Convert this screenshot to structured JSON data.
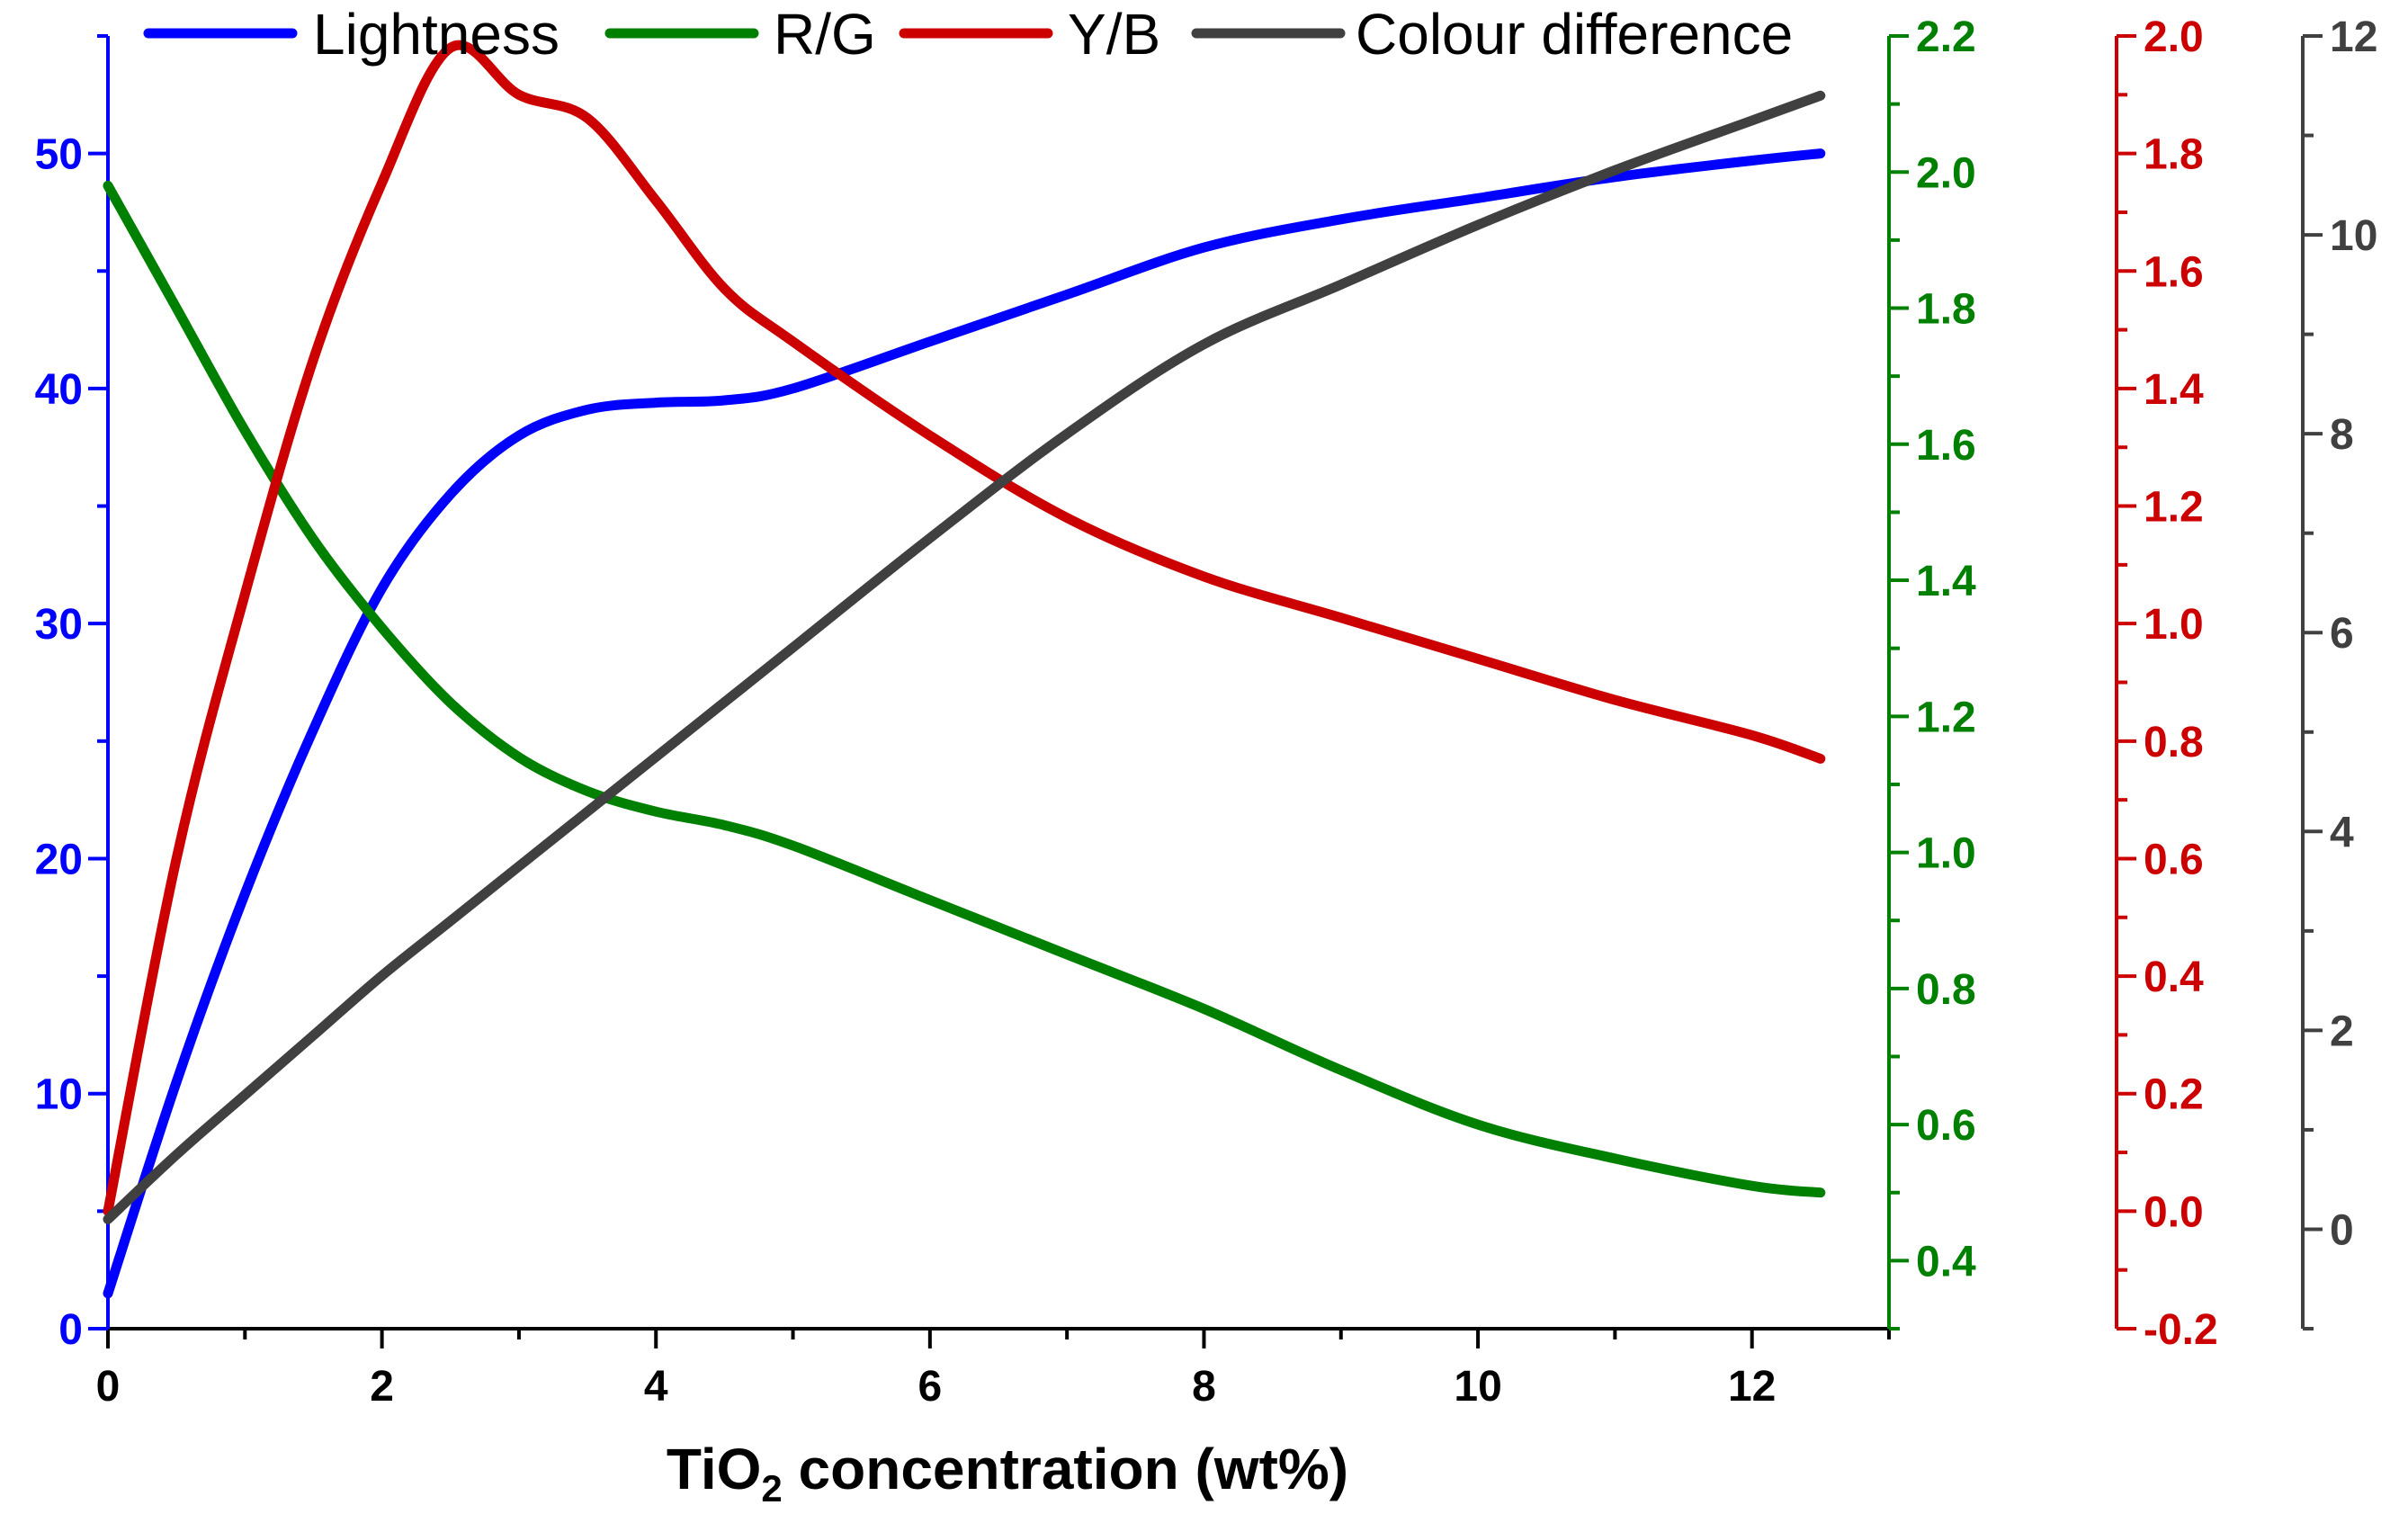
{
  "colors": {
    "lightness": "#0000ff",
    "rg": "#008000",
    "yb": "#cc0000",
    "colour_difference": "#404040",
    "axis_black": "#000000"
  },
  "chart_data": {
    "type": "line",
    "title": "",
    "xlabel": {
      "prefix": "TiO",
      "subscript": "2",
      "suffix": " concentration (wt%)"
    },
    "x_ticks": [
      "0",
      "2",
      "4",
      "6",
      "8",
      "10",
      "12"
    ],
    "xlim": [
      0,
      13
    ],
    "legend": {
      "placement": "top",
      "entries": [
        "Lightness",
        "R/G",
        "Y/B",
        "Colour difference"
      ]
    },
    "axes": [
      {
        "key": "lightness",
        "side": "left",
        "ylim": [
          0,
          55
        ],
        "ticks": [
          "0",
          "10",
          "20",
          "30",
          "40",
          "50"
        ]
      },
      {
        "key": "rg",
        "side": "right-1",
        "ylim": [
          0.3,
          2.2
        ],
        "ticks": [
          "0.4",
          "0.6",
          "0.8",
          "1.0",
          "1.2",
          "1.4",
          "1.6",
          "1.8",
          "2.0",
          "2.2"
        ]
      },
      {
        "key": "yb",
        "side": "right-2",
        "ylim": [
          -0.2,
          2.0
        ],
        "ticks": [
          "-0.2",
          "0.0",
          "0.2",
          "0.4",
          "0.6",
          "0.8",
          "1.0",
          "1.2",
          "1.4",
          "1.6",
          "1.8",
          "2.0"
        ]
      },
      {
        "key": "colour_difference",
        "side": "right-3",
        "ylim": [
          -1,
          12
        ],
        "ticks": [
          "0",
          "2",
          "4",
          "6",
          "8",
          "10",
          "12"
        ]
      }
    ],
    "series": [
      {
        "name": "Lightness",
        "key": "lightness",
        "axis": 0,
        "x": [
          0,
          0.5,
          1,
          1.5,
          2,
          2.5,
          3,
          3.5,
          4,
          4.5,
          5,
          6,
          7,
          8,
          9,
          10,
          11,
          12,
          12.5
        ],
        "y": [
          1.5,
          10.5,
          18.5,
          25.5,
          31.5,
          35.5,
          38,
          39.1,
          39.4,
          39.5,
          40,
          42,
          44,
          46,
          47.2,
          48.1,
          49,
          49.7,
          50
        ]
      },
      {
        "name": "R/G",
        "key": "rg",
        "axis": 1,
        "x": [
          0,
          0.5,
          1,
          1.5,
          2,
          2.5,
          3,
          3.5,
          4,
          4.5,
          5,
          6,
          7,
          8,
          9,
          10,
          11,
          12,
          12.5
        ],
        "y": [
          1.98,
          1.8,
          1.62,
          1.46,
          1.33,
          1.22,
          1.14,
          1.09,
          1.06,
          1.04,
          1.01,
          0.93,
          0.85,
          0.77,
          0.68,
          0.6,
          0.55,
          0.51,
          0.5
        ]
      },
      {
        "name": "Y/B",
        "key": "yb",
        "axis": 2,
        "x": [
          0,
          0.5,
          1,
          1.5,
          2,
          2.5,
          3,
          3.5,
          4,
          4.5,
          5,
          6,
          7,
          8,
          9,
          10,
          11,
          12,
          12.5
        ],
        "y": [
          0.0,
          0.6,
          1.05,
          1.45,
          1.75,
          1.98,
          1.9,
          1.86,
          1.72,
          1.57,
          1.48,
          1.32,
          1.18,
          1.08,
          1.01,
          0.94,
          0.87,
          0.81,
          0.77
        ]
      },
      {
        "name": "Colour difference",
        "key": "colour_difference",
        "axis": 3,
        "x": [
          0,
          0.5,
          1,
          1.5,
          2,
          2.5,
          3,
          3.5,
          4,
          4.5,
          5,
          6,
          7,
          8,
          9,
          10,
          11,
          12,
          12.5
        ],
        "y": [
          0.1,
          0.75,
          1.35,
          1.95,
          2.55,
          3.1,
          3.65,
          4.2,
          4.75,
          5.3,
          5.85,
          6.95,
          8.0,
          8.9,
          9.5,
          10.1,
          10.65,
          11.15,
          11.4
        ]
      }
    ]
  }
}
